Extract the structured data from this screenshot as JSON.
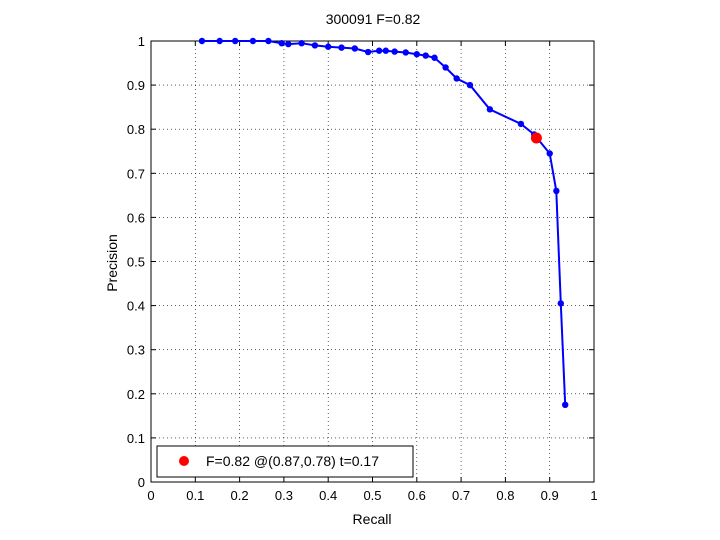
{
  "chart_data": {
    "type": "line",
    "title": "300091 F=0.82",
    "xlabel": "Recall",
    "ylabel": "Precision",
    "xlim": [
      0,
      1
    ],
    "ylim": [
      0,
      1
    ],
    "xticks": [
      "0",
      "0.1",
      "0.2",
      "0.3",
      "0.4",
      "0.5",
      "0.6",
      "0.7",
      "0.8",
      "0.9",
      "1"
    ],
    "yticks": [
      "0",
      "0.1",
      "0.2",
      "0.3",
      "0.4",
      "0.5",
      "0.6",
      "0.7",
      "0.8",
      "0.9",
      "1"
    ],
    "grid": true,
    "series": [
      {
        "color": "#0000ff",
        "marker": "dot",
        "points": [
          [
            0.115,
            1.0
          ],
          [
            0.155,
            1.0
          ],
          [
            0.19,
            1.0
          ],
          [
            0.23,
            1.0
          ],
          [
            0.265,
            1.0
          ],
          [
            0.295,
            0.995
          ],
          [
            0.31,
            0.993
          ],
          [
            0.34,
            0.995
          ],
          [
            0.37,
            0.99
          ],
          [
            0.4,
            0.987
          ],
          [
            0.43,
            0.985
          ],
          [
            0.46,
            0.983
          ],
          [
            0.49,
            0.975
          ],
          [
            0.515,
            0.978
          ],
          [
            0.53,
            0.978
          ],
          [
            0.55,
            0.976
          ],
          [
            0.575,
            0.974
          ],
          [
            0.6,
            0.97
          ],
          [
            0.62,
            0.967
          ],
          [
            0.64,
            0.962
          ],
          [
            0.665,
            0.94
          ],
          [
            0.69,
            0.915
          ],
          [
            0.72,
            0.9
          ],
          [
            0.765,
            0.845
          ],
          [
            0.835,
            0.812
          ],
          [
            0.865,
            0.788
          ],
          [
            0.9,
            0.745
          ],
          [
            0.915,
            0.66
          ],
          [
            0.925,
            0.405
          ],
          [
            0.935,
            0.175
          ]
        ]
      }
    ],
    "best_point": {
      "x": 0.87,
      "y": 0.78,
      "color": "#ff0000"
    },
    "legend": {
      "position": "bottom-left",
      "label": "F=0.82 @(0.87,0.78) t=0.17",
      "marker_color": "#ff0000"
    }
  }
}
